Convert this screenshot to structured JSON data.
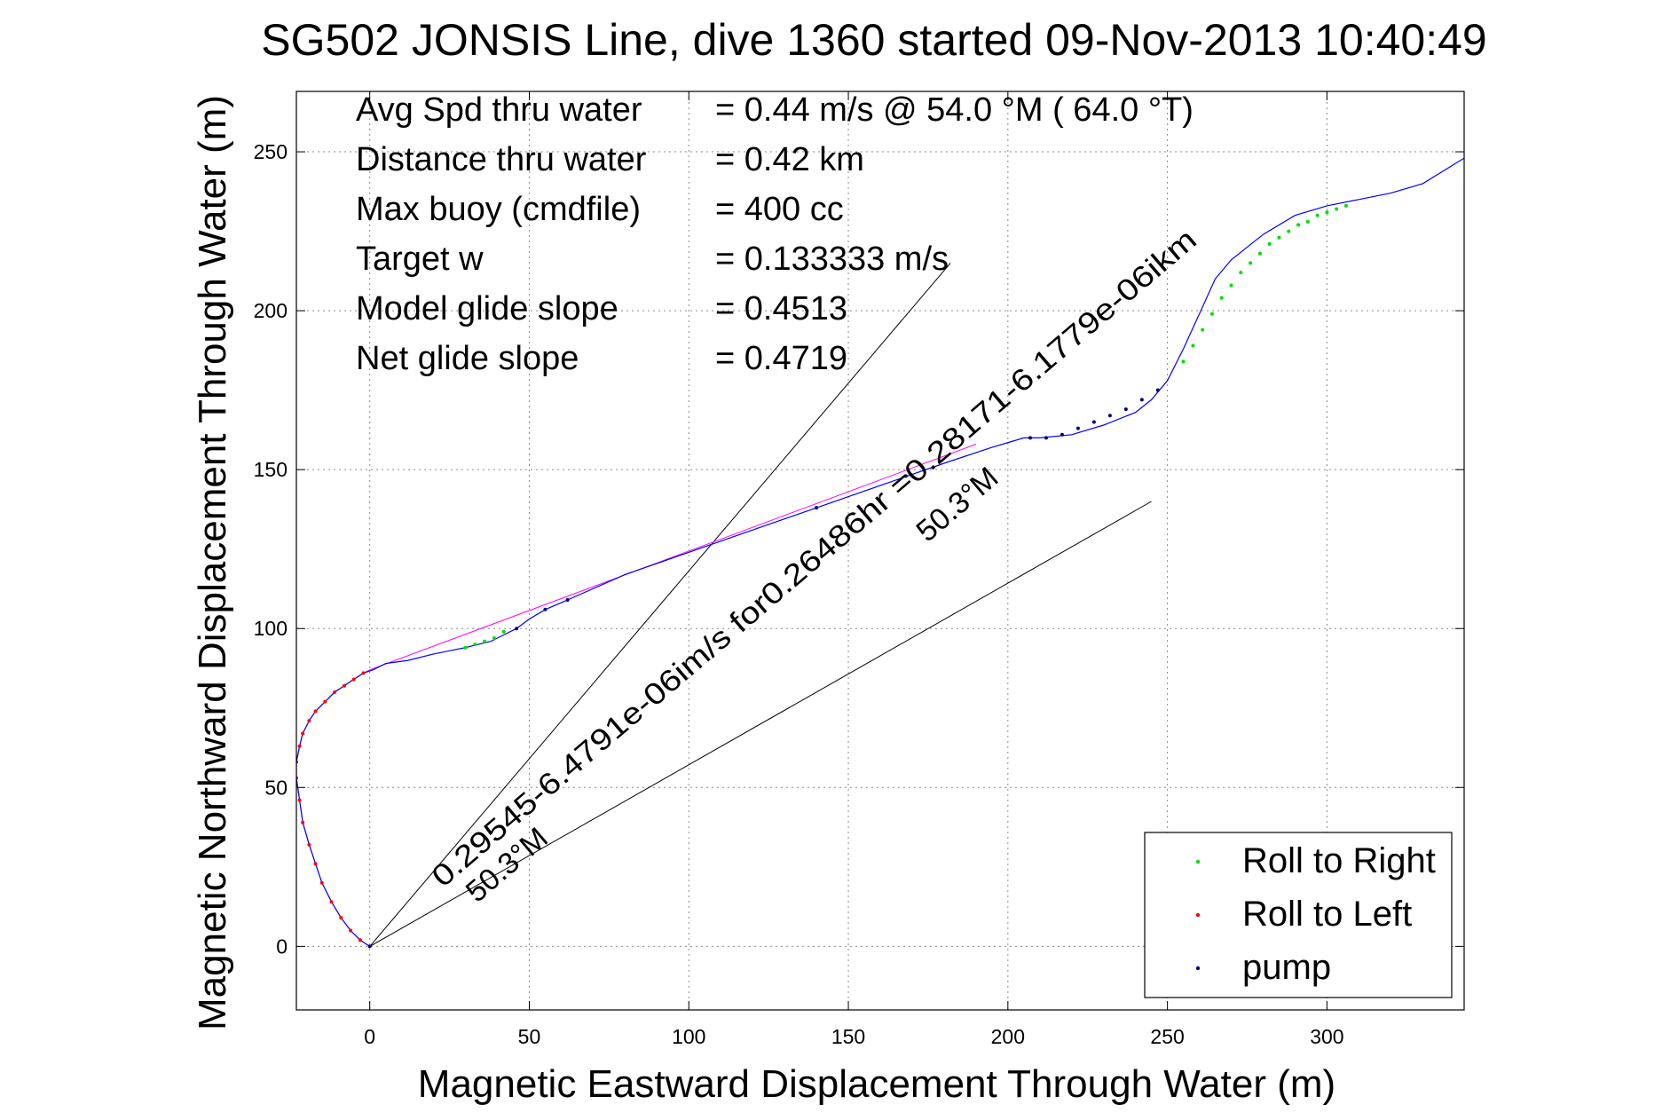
{
  "chart_data": {
    "type": "line",
    "title": "SG502 JONSIS Line, dive 1360 started 09-Nov-2013 10:40:49",
    "xlabel": "Magnetic Eastward Displacement Through Water (m)",
    "ylabel": "Magnetic Northward Displacement Through Water (m)",
    "xlim": [
      -23,
      343
    ],
    "ylim": [
      -20,
      269
    ],
    "grid": true,
    "xticks": [
      0,
      50,
      100,
      150,
      200,
      250,
      300
    ],
    "yticks": [
      0,
      50,
      100,
      150,
      200,
      250
    ],
    "annotations": [
      {
        "label": "Avg Spd thru water",
        "value": "=  0.44 m/s @  54.0 °M ( 64.0 °T)"
      },
      {
        "label": "Distance thru water",
        "value": "=  0.42 km"
      },
      {
        "label": "Max buoy (cmdfile)",
        "value": "= 400 cc"
      },
      {
        "label": "Target w",
        "value": "= 0.133333 m/s"
      },
      {
        "label": "Model glide slope",
        "value": "= 0.4513"
      },
      {
        "label": "Net glide slope",
        "value": "= 0.4719"
      }
    ],
    "diagonal_labels": [
      {
        "text": "0.29545-6.4791e-06im/s for0.26486hr =0.28171-6.1779e-06ikm",
        "sub": "50.3°M"
      },
      {
        "text": "",
        "sub": "50.3°M"
      }
    ],
    "legend": {
      "placement": "bottom-right",
      "entries": [
        {
          "label": "Roll to Right",
          "color": "#00dd00"
        },
        {
          "label": "Roll to Left",
          "color": "#ff0000"
        },
        {
          "label": "pump",
          "color": "#000080"
        }
      ]
    },
    "track": {
      "name": "track",
      "color": "#0000ff",
      "x": [
        0,
        -3,
        -6,
        -9,
        -12,
        -15,
        -17,
        -19,
        -21,
        -22,
        -23,
        -23,
        -22,
        -21,
        -19,
        -17,
        -14,
        -11,
        -8,
        -5,
        -2,
        1,
        5,
        12,
        20,
        30,
        38,
        42,
        46,
        50,
        55,
        62,
        80,
        100,
        120,
        140,
        160,
        180,
        195,
        205,
        210,
        220,
        230,
        240,
        245,
        250,
        255,
        260,
        265,
        270,
        280,
        290,
        300,
        310,
        320,
        330,
        343
      ],
      "y": [
        0,
        2,
        5,
        9,
        14,
        20,
        26,
        32,
        39,
        46,
        53,
        58,
        63,
        67,
        71,
        74,
        77,
        80,
        82,
        84,
        86,
        87,
        89,
        90,
        92,
        94,
        96,
        98,
        100,
        103,
        106,
        109,
        117,
        124,
        131,
        138,
        145,
        152,
        157,
        160,
        160,
        161,
        164,
        168,
        172,
        178,
        188,
        199,
        210,
        216,
        224,
        230,
        233,
        235,
        237,
        240,
        248
      ]
    },
    "pink_track": {
      "color": "#ff00ff",
      "x": [
        0,
        -3,
        -6,
        -9,
        -12,
        -15,
        -17,
        -19,
        -21,
        -22,
        -23,
        -23,
        -22,
        -21,
        -19,
        -17,
        -14,
        -11,
        -8,
        -5,
        -2,
        0,
        190
      ],
      "y": [
        0,
        2,
        5,
        9,
        14,
        20,
        26,
        32,
        39,
        46,
        53,
        58,
        63,
        67,
        71,
        74,
        77,
        80,
        82,
        84,
        86,
        87,
        158
      ]
    },
    "roll_right_points": {
      "color": "#00dd00",
      "x": [
        30,
        33,
        36,
        39,
        42,
        255,
        258,
        261,
        264,
        267,
        270,
        273,
        276,
        279,
        282,
        285,
        288,
        291,
        294,
        297,
        300,
        303,
        306
      ],
      "y": [
        94,
        95,
        96,
        97,
        99,
        184,
        189,
        194,
        199,
        204,
        208,
        212,
        215,
        218,
        221,
        223,
        225,
        227,
        228,
        230,
        231,
        232,
        233
      ]
    },
    "roll_left_points": {
      "color": "#ff0000",
      "x": [
        -3,
        -6,
        -9,
        -12,
        -15,
        -17,
        -19,
        -21,
        -22,
        -23,
        -23,
        -22,
        -21,
        -19,
        -17,
        -14,
        -11,
        -8,
        -5,
        -2
      ],
      "y": [
        2,
        5,
        9,
        14,
        20,
        26,
        32,
        39,
        46,
        53,
        58,
        63,
        67,
        71,
        74,
        77,
        80,
        82,
        84,
        86
      ]
    },
    "pump_points": {
      "color": "#000080",
      "x": [
        0,
        46,
        55,
        62,
        140,
        168,
        207,
        212,
        217,
        222,
        227,
        232,
        237,
        242,
        247
      ],
      "y": [
        0,
        100,
        106,
        109,
        138,
        148,
        160,
        160,
        161,
        163,
        165,
        167,
        169,
        172,
        175
      ]
    },
    "reference_lines": [
      {
        "color": "#000000",
        "x": [
          0,
          182
        ],
        "y": [
          0,
          215
        ]
      },
      {
        "color": "#000000",
        "x": [
          0,
          245
        ],
        "y": [
          0,
          140
        ]
      }
    ]
  }
}
